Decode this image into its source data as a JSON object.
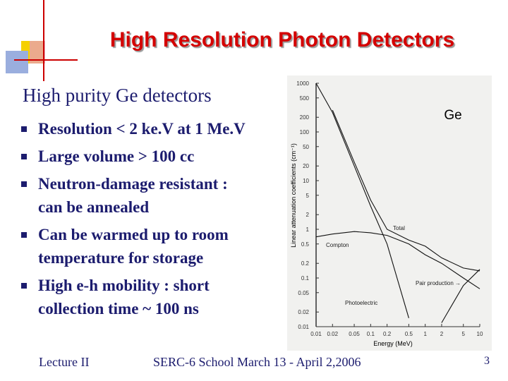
{
  "title": "High Resolution Photon Detectors",
  "heading": "High purity Ge detectors",
  "bullets": [
    [
      "Resolution < 2 ke.V at 1 Me.V"
    ],
    [
      "Large volume > 100 cc"
    ],
    [
      "Neutron-damage resistant :",
      "can be annealed"
    ],
    [
      "Can be warmed up to room",
      "temperature for storage"
    ],
    [
      "High e-h mobility : short",
      "collection time ~ 100 ns"
    ]
  ],
  "footer": {
    "left": "Lecture II",
    "center": "SERC-6 School March 13 - April 2,2006",
    "page": "3"
  },
  "chart_data": {
    "type": "line",
    "label": "Ge",
    "x_label": "Energy (MeV)",
    "y_label": "Linear attenuation coefficients (cm⁻¹)",
    "xlog": true,
    "ylog": true,
    "x": [
      0.01,
      0.02,
      0.05,
      0.1,
      0.2,
      0.5,
      1,
      2,
      5,
      10
    ],
    "xlim": [
      0.01,
      10
    ],
    "ylim": [
      0.01,
      1000
    ],
    "xticks": [
      0.01,
      0.02,
      0.05,
      0.1,
      0.2,
      0.5,
      1,
      2,
      5,
      10
    ],
    "yticks": [
      0.01,
      0.02,
      0.05,
      0.1,
      0.2,
      0.5,
      1,
      2,
      5,
      10,
      20,
      50,
      100,
      200,
      500,
      1000
    ],
    "series": [
      {
        "name": "Total",
        "color": "#111111",
        "values": [
          null,
          280,
          24,
          4,
          1,
          0.6,
          0.45,
          0.26,
          0.16,
          0.14
        ]
      },
      {
        "name": "Compton",
        "color": "#111111",
        "values": [
          0.7,
          0.8,
          0.9,
          0.85,
          0.75,
          0.5,
          0.3,
          0.2,
          0.1,
          0.06
        ]
      },
      {
        "name": "Photoelectric",
        "color": "#111111",
        "values": [
          1000,
          250,
          20,
          3,
          0.5,
          0.015,
          null,
          null,
          null,
          null
        ]
      },
      {
        "name": "Pair production →",
        "color": "#111111",
        "values": [
          null,
          null,
          null,
          null,
          null,
          null,
          null,
          0.012,
          0.07,
          0.15
        ]
      }
    ]
  }
}
